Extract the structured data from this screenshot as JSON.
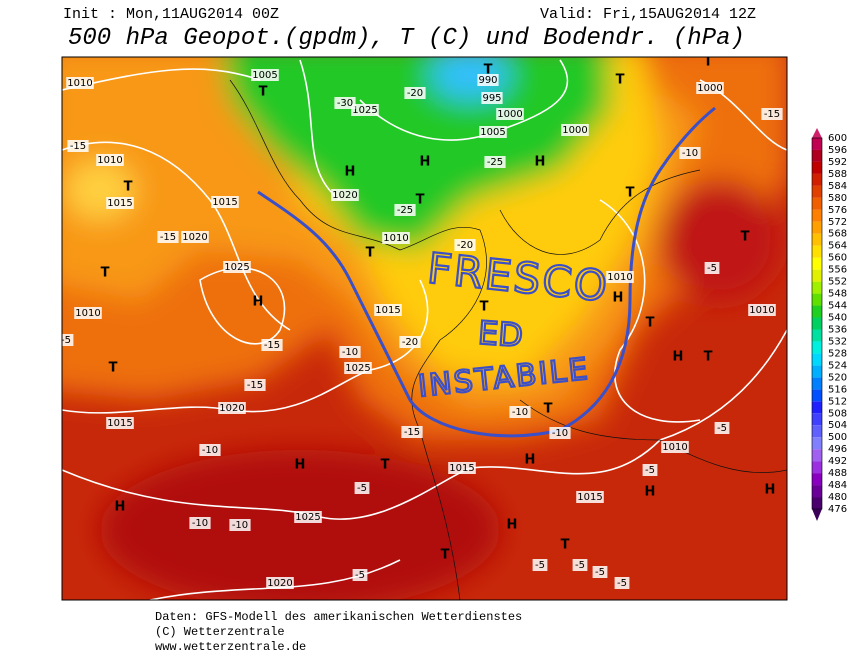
{
  "header": {
    "init": "Init : Mon,11AUG2014 00Z",
    "valid": "Valid: Fri,15AUG2014 12Z",
    "title": "500 hPa Geopot.(gpdm), T (C) und Bodendr. (hPa)"
  },
  "map_labels": [
    "H",
    "H",
    "H",
    "H",
    "H",
    "H",
    "H",
    "H",
    "H",
    "H",
    "H",
    "H",
    "T",
    "T",
    "T",
    "T",
    "T",
    "T",
    "T",
    "T",
    "T",
    "T",
    "T",
    "T",
    "T",
    "T",
    "T",
    "T",
    "T",
    "T",
    "1010",
    "1010",
    "1015",
    "1020",
    "1025",
    "1010",
    "1015",
    "1020",
    "1025",
    "1015",
    "1010",
    "1020",
    "1025",
    "1005",
    "990",
    "995",
    "1000",
    "1005",
    "1000",
    "1000",
    "1010",
    "1010",
    "1010",
    "1015",
    "1015",
    "1025",
    "1020",
    "1015",
    "-15",
    "-15",
    "-15",
    "-15",
    "-10",
    "-10",
    "-10",
    "-10",
    "-5",
    "-5",
    "-5",
    "-5",
    "-5",
    "-5",
    "-5",
    "-5",
    "-5",
    "-10",
    "-10",
    "-20",
    "-20",
    "-25",
    "-25",
    "-30",
    "-20",
    "-15",
    "-10",
    "-5",
    "-15"
  ],
  "annotation": [
    "FRESCO",
    "ED",
    "INSTABILE"
  ],
  "colorbar": {
    "levels": [
      476,
      480,
      484,
      488,
      492,
      496,
      500,
      504,
      508,
      512,
      516,
      520,
      524,
      528,
      532,
      536,
      540,
      544,
      548,
      552,
      556,
      560,
      564,
      568,
      572,
      576,
      580,
      584,
      588,
      592,
      596,
      600
    ],
    "colors": [
      "#4b0070",
      "#6a0098",
      "#8a00c0",
      "#9a30e0",
      "#a060f0",
      "#8080ff",
      "#6060ff",
      "#4040ff",
      "#2020ff",
      "#0050ff",
      "#0080ff",
      "#00b0ff",
      "#00d8ff",
      "#00f0e0",
      "#00e0a0",
      "#00d060",
      "#20d020",
      "#60e000",
      "#a0f000",
      "#e0f000",
      "#ffff00",
      "#ffe000",
      "#ffc000",
      "#ffa000",
      "#ff8000",
      "#f06000",
      "#e04000",
      "#d02000",
      "#c00000",
      "#b00020",
      "#c00050"
    ]
  },
  "footer": [
    "Daten: GFS-Modell des amerikanischen Wetterdienstes",
    "(C) Wetterzentrale",
    "www.wetterzentrale.de"
  ]
}
